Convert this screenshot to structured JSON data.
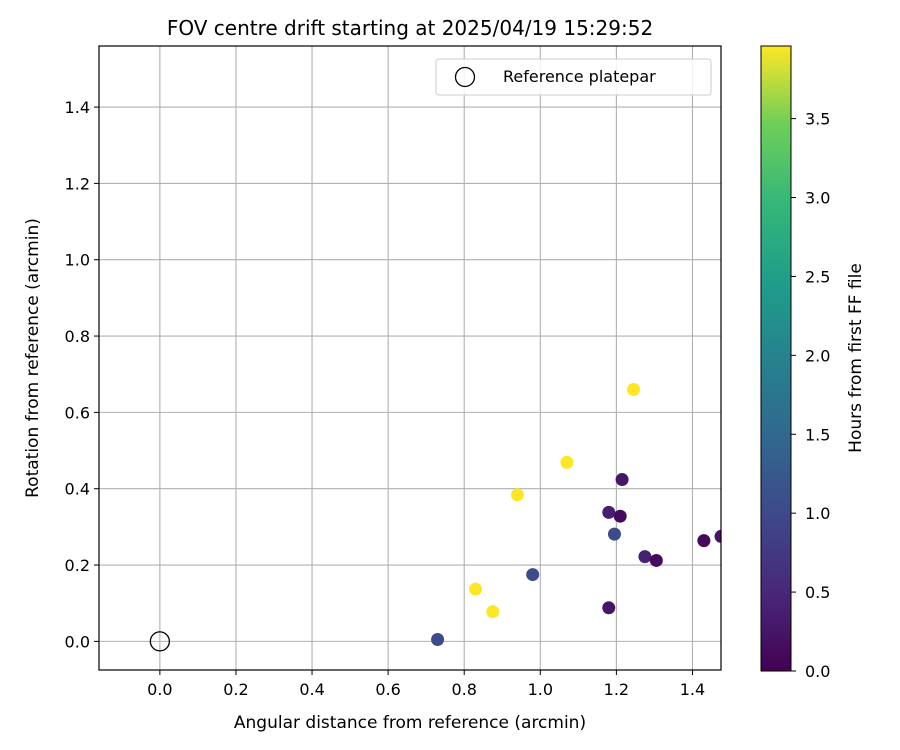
{
  "chart_data": {
    "type": "scatter",
    "title": "FOV centre drift starting at 2025/04/19 15:29:52",
    "xlabel": "Angular distance from reference (arcmin)",
    "ylabel": "Rotation from reference (arcmin)",
    "xlim": [
      -0.16,
      1.475
    ],
    "ylim": [
      -0.075,
      1.56
    ],
    "xticks": [
      0.0,
      0.2,
      0.4,
      0.6,
      0.8,
      1.0,
      1.2,
      1.4
    ],
    "xtick_labels": [
      "0.0",
      "0.2",
      "0.4",
      "0.6",
      "0.8",
      "1.0",
      "1.2",
      "1.4"
    ],
    "yticks": [
      0.0,
      0.2,
      0.4,
      0.6,
      0.8,
      1.0,
      1.2,
      1.4
    ],
    "ytick_labels": [
      "0.0",
      "0.2",
      "0.4",
      "0.6",
      "0.8",
      "1.0",
      "1.2",
      "1.4"
    ],
    "grid": true,
    "legend": {
      "position": "top-right",
      "entries": [
        "Reference platepar"
      ]
    },
    "reference_point": {
      "x": 0.0,
      "y": 0.0,
      "label": "Reference platepar"
    },
    "colorbar": {
      "label": "Hours from first FF file",
      "range": [
        0.0,
        3.96
      ],
      "ticks": [
        0.0,
        0.5,
        1.0,
        1.5,
        2.0,
        2.5,
        3.0,
        3.5
      ],
      "tick_labels": [
        "0.0",
        "0.5",
        "1.0",
        "1.5",
        "2.0",
        "2.5",
        "3.0",
        "3.5"
      ],
      "colormap": "viridis"
    },
    "points": [
      {
        "x": 0.73,
        "y": 0.005,
        "c": 1.0
      },
      {
        "x": 0.98,
        "y": 0.175,
        "c": 1.0
      },
      {
        "x": 1.195,
        "y": 0.281,
        "c": 1.0
      },
      {
        "x": 1.18,
        "y": 0.338,
        "c": 0.38
      },
      {
        "x": 1.21,
        "y": 0.328,
        "c": 0.12
      },
      {
        "x": 1.215,
        "y": 0.424,
        "c": 0.28
      },
      {
        "x": 1.18,
        "y": 0.088,
        "c": 0.28
      },
      {
        "x": 1.275,
        "y": 0.222,
        "c": 0.4
      },
      {
        "x": 1.305,
        "y": 0.212,
        "c": 0.12
      },
      {
        "x": 1.43,
        "y": 0.264,
        "c": 0.12
      },
      {
        "x": 1.475,
        "y": 0.275,
        "c": 0.25
      },
      {
        "x": 0.83,
        "y": 0.137,
        "c": 3.96
      },
      {
        "x": 0.875,
        "y": 0.078,
        "c": 3.96
      },
      {
        "x": 0.94,
        "y": 0.384,
        "c": 3.96
      },
      {
        "x": 1.07,
        "y": 0.469,
        "c": 3.96
      },
      {
        "x": 1.245,
        "y": 0.66,
        "c": 3.96
      }
    ]
  }
}
